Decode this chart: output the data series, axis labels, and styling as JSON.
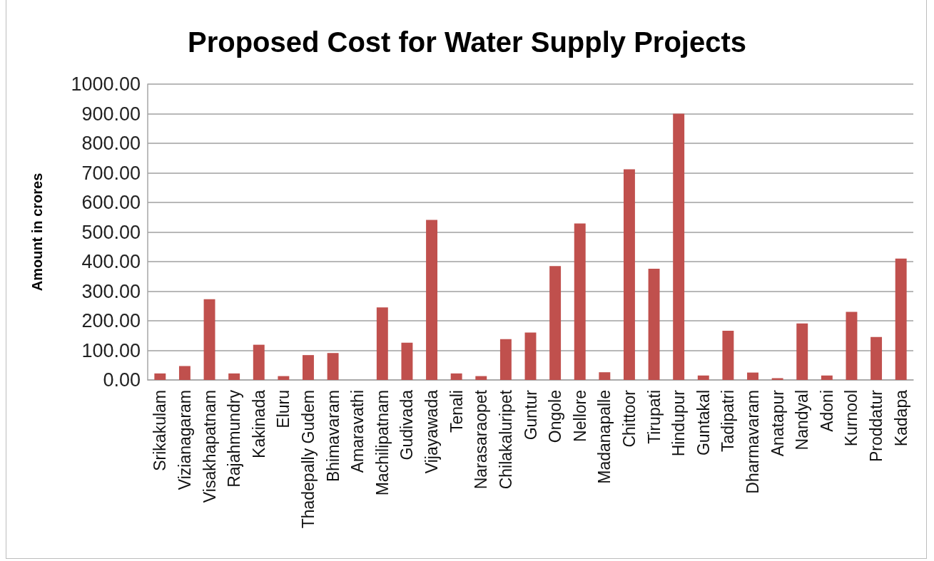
{
  "chart_data": {
    "type": "bar",
    "title": "Proposed Cost for Water Supply Projects",
    "ylabel": "Amount in crores",
    "categories": [
      "Srikakulam",
      "Vizianagaram",
      "Visakhapatnam",
      "Rajahmundry",
      "Kakinada",
      "Eluru",
      "Thadepally Gudem",
      "Bhimavaram",
      "Amaravathi",
      "Machilipatnam",
      "Gudivada",
      "Vijayawada",
      "Tenali",
      "Narasaraopet",
      "Chilakaluripet",
      "Guntur",
      "Ongole",
      "Nellore",
      "Madanapalle",
      "Chittoor",
      "Tirupati",
      "Hindupur",
      "Guntakal",
      "Tadipatri",
      "Dharmavaram",
      "Anatapur",
      "Nandyal",
      "Adoni",
      "Kurnool",
      "Proddatur",
      "Kadapa"
    ],
    "values": [
      22,
      47,
      273,
      22,
      119,
      13,
      84,
      91,
      0,
      245,
      126,
      541,
      22,
      13,
      138,
      160,
      385,
      529,
      26,
      712,
      376,
      900,
      15,
      166,
      25,
      6,
      191,
      15,
      230,
      145,
      410
    ],
    "color": "#c0504d",
    "ylim": [
      0,
      1000
    ],
    "yticks": [
      {
        "value": 0,
        "label": "0.00"
      },
      {
        "value": 100,
        "label": "100.00"
      },
      {
        "value": 200,
        "label": "200.00"
      },
      {
        "value": 300,
        "label": "300.00"
      },
      {
        "value": 400,
        "label": "400.00"
      },
      {
        "value": 500,
        "label": "500.00"
      },
      {
        "value": 600,
        "label": "600.00"
      },
      {
        "value": 700,
        "label": "700.00"
      },
      {
        "value": 800,
        "label": "800.00"
      },
      {
        "value": 900,
        "label": "900.00"
      },
      {
        "value": 1000,
        "label": "1000.00"
      }
    ],
    "grid": "y"
  }
}
